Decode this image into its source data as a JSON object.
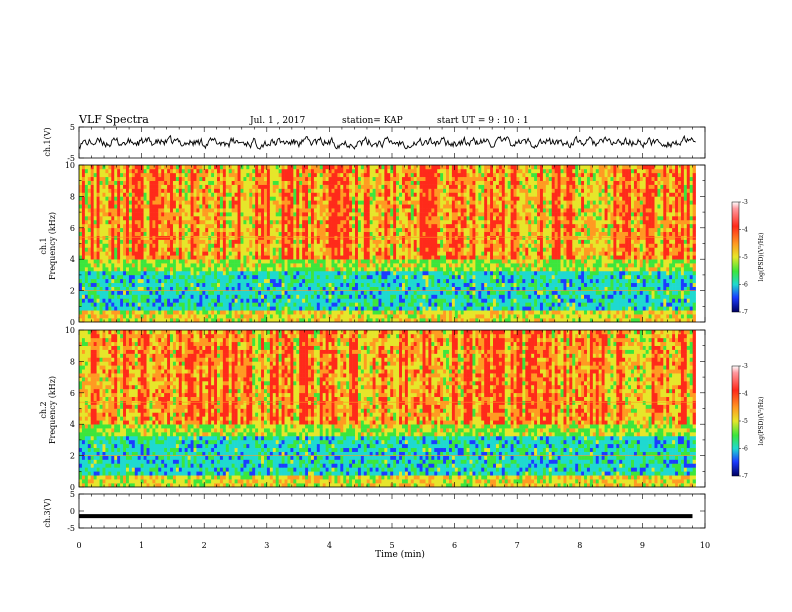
{
  "header": {
    "title": "VLF Spectra",
    "date": "Jul. 1 , 2017",
    "station": "station= KAP",
    "start": "start UT =  9 : 10 : 1"
  },
  "chart_data": [
    {
      "type": "line",
      "ylabel": "ch.1(V)",
      "ylim": [
        -5,
        5
      ],
      "yticks": [
        "5",
        "-5"
      ],
      "xlim": [
        0,
        10
      ],
      "description_free": true
    },
    {
      "type": "heatmap",
      "ylabel": "ch.1\nFrequency (kHz)",
      "ylabel_lines": [
        "ch.1",
        "Frequency (kHz)"
      ],
      "ylim": [
        0,
        10
      ],
      "yticks": [
        "0",
        "2",
        "4",
        "6",
        "8",
        "10"
      ],
      "xlim": [
        0,
        10
      ],
      "colorbar": {
        "label": "log(PSD)(V²/Hz)",
        "range": [
          -7,
          -3
        ],
        "ticks": [
          "-3",
          "-4",
          "-5",
          "-6",
          "-7"
        ]
      }
    },
    {
      "type": "heatmap",
      "ylabel_lines": [
        "ch.2",
        "Frequency (kHz)"
      ],
      "ylim": [
        0,
        10
      ],
      "yticks": [
        "0",
        "2",
        "4",
        "6",
        "8",
        "10"
      ],
      "xlim": [
        0,
        10
      ],
      "colorbar": {
        "label": "log(PSD)(V²/Hz)",
        "range": [
          -7,
          -3
        ],
        "ticks": [
          "-3",
          "-4",
          "-5",
          "-6",
          "-7"
        ]
      }
    },
    {
      "type": "line",
      "ylabel": "ch.3(V)",
      "ylim": [
        -5,
        5
      ],
      "yticks": [
        "5",
        "0",
        "-5"
      ],
      "xlim": [
        0,
        10
      ],
      "x": [
        0,
        9.8
      ],
      "y": [
        -1.5,
        -1.5
      ]
    }
  ],
  "xaxis": {
    "label": "Time (min)",
    "ticks": [
      "0",
      "1",
      "2",
      "3",
      "4",
      "5",
      "6",
      "7",
      "8",
      "9",
      "10"
    ]
  },
  "colors": {
    "red": "#ff2a1a",
    "orange": "#ff9a22",
    "yellow": "#e6e62a",
    "green": "#3ce63c",
    "cyan": "#1fd9d0",
    "blue": "#1c3cff",
    "navy": "#0a0a90"
  }
}
